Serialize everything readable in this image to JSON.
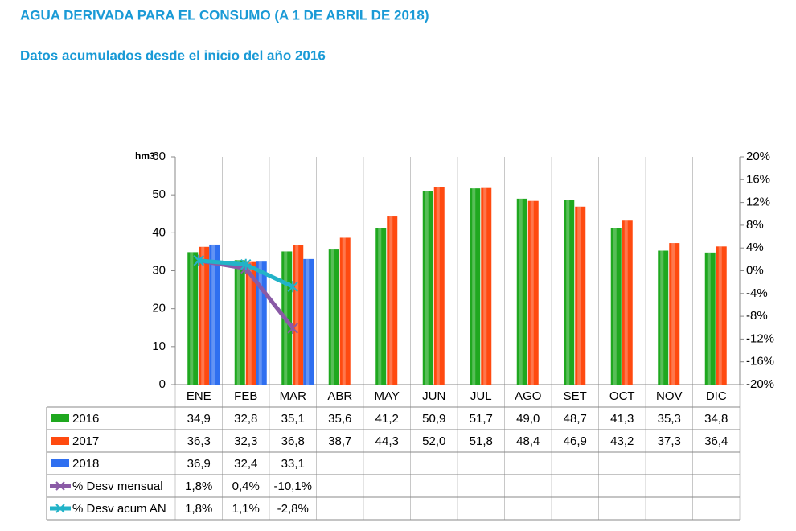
{
  "chart_data": {
    "type": "bar",
    "title": "AGUA DERIVADA PARA EL CONSUMO (A 1 DE ABRIL DE 2018)",
    "subtitle": "Datos acumulados desde el inicio del año 2016",
    "y_label": "hm3",
    "categories": [
      "ENE",
      "FEB",
      "MAR",
      "ABR",
      "MAY",
      "JUN",
      "JUL",
      "AGO",
      "SET",
      "OCT",
      "NOV",
      "DIC"
    ],
    "series": [
      {
        "name": "2016",
        "type": "bar",
        "color": "#1fa81f",
        "values": [
          34.9,
          32.8,
          35.1,
          35.6,
          41.2,
          50.9,
          51.7,
          49.0,
          48.7,
          41.3,
          35.3,
          34.8
        ],
        "value_labels": [
          "34,9",
          "32,8",
          "35,1",
          "35,6",
          "41,2",
          "50,9",
          "51,7",
          "49,0",
          "48,7",
          "41,3",
          "35,3",
          "34,8"
        ]
      },
      {
        "name": "2017",
        "type": "bar",
        "color": "#ff4a10",
        "values": [
          36.3,
          32.3,
          36.8,
          38.7,
          44.3,
          52.0,
          51.8,
          48.4,
          46.9,
          43.2,
          37.3,
          36.4
        ],
        "value_labels": [
          "36,3",
          "32,3",
          "36,8",
          "38,7",
          "44,3",
          "52,0",
          "51,8",
          "48,4",
          "46,9",
          "43,2",
          "37,3",
          "36,4"
        ]
      },
      {
        "name": "2018",
        "type": "bar",
        "color": "#2f6ff0",
        "values": [
          36.9,
          32.4,
          33.1,
          null,
          null,
          null,
          null,
          null,
          null,
          null,
          null,
          null
        ],
        "value_labels": [
          "36,9",
          "32,4",
          "33,1",
          null,
          null,
          null,
          null,
          null,
          null,
          null,
          null,
          null
        ]
      },
      {
        "name": "% Desv mensual",
        "type": "line",
        "axis": "y2",
        "color": "#8a5aa6",
        "values": [
          1.8,
          0.4,
          -10.1,
          null,
          null,
          null,
          null,
          null,
          null,
          null,
          null,
          null
        ],
        "value_labels": [
          "1,8%",
          "0,4%",
          "-10,1%",
          null,
          null,
          null,
          null,
          null,
          null,
          null,
          null,
          null
        ]
      },
      {
        "name": "% Desv acum AN",
        "type": "line",
        "axis": "y2",
        "color": "#22b3c8",
        "values": [
          1.8,
          1.1,
          -2.8,
          null,
          null,
          null,
          null,
          null,
          null,
          null,
          null,
          null
        ],
        "value_labels": [
          "1,8%",
          "1,1%",
          "-2,8%",
          null,
          null,
          null,
          null,
          null,
          null,
          null,
          null,
          null
        ]
      }
    ],
    "ylim": [
      0,
      60
    ],
    "yticks": [
      0,
      10,
      20,
      30,
      40,
      50,
      60
    ],
    "y2lim": [
      -20,
      20
    ],
    "y2ticks": [
      {
        "value": -20,
        "label": "-20%"
      },
      {
        "value": -16,
        "label": "-16%"
      },
      {
        "value": -12,
        "label": "-12%"
      },
      {
        "value": -8,
        "label": "-8%"
      },
      {
        "value": -4,
        "label": "-4%"
      },
      {
        "value": 0,
        "label": "0%"
      },
      {
        "value": 4,
        "label": "4%"
      },
      {
        "value": 8,
        "label": "8%"
      },
      {
        "value": 12,
        "label": "12%"
      },
      {
        "value": 16,
        "label": "16%"
      },
      {
        "value": 20,
        "label": "20%"
      }
    ]
  }
}
